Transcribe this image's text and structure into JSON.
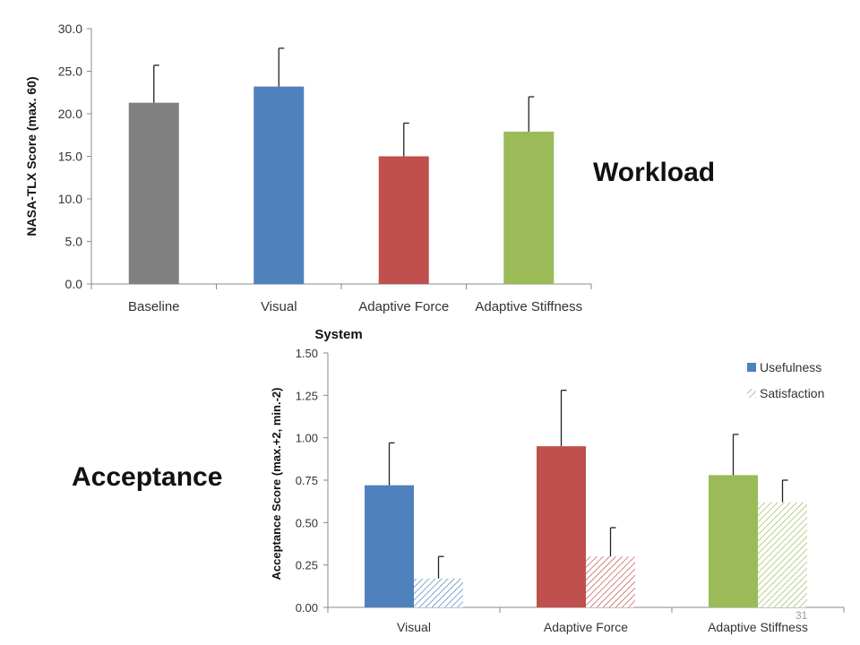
{
  "labels": {
    "workload": "Workload",
    "acceptance": "Acceptance",
    "page_number": "31"
  },
  "chart_data": [
    {
      "type": "bar",
      "ylabel": "NASA-TLX Score (max. 60)",
      "xlabel": "System",
      "ylim": [
        0,
        30
      ],
      "ytick_step": 5,
      "ytick_labels": [
        "0.0",
        "5.0",
        "10.0",
        "15.0",
        "20.0",
        "25.0",
        "30.0"
      ],
      "grid": false,
      "categories": [
        "Baseline",
        "Visual",
        "Adaptive Force",
        "Adaptive Stiffness"
      ],
      "values": [
        21.3,
        23.2,
        15.0,
        17.9
      ],
      "errors": [
        4.4,
        4.5,
        3.9,
        4.1
      ],
      "colors": [
        "#808080",
        "#4f81bd",
        "#c0504d",
        "#9bbb59"
      ]
    },
    {
      "type": "bar",
      "ylabel": "Acceptance Score (max.+2, min.-2)",
      "ylim": [
        0,
        1.5
      ],
      "ytick_step": 0.25,
      "ytick_labels": [
        "0.00",
        "0.25",
        "0.50",
        "0.75",
        "1.00",
        "1.25",
        "1.50"
      ],
      "grid": false,
      "legend": "top-right",
      "categories": [
        "Visual",
        "Adaptive Force",
        "Adaptive Stiffness"
      ],
      "series": [
        {
          "name": "Usefulness",
          "style": "solid",
          "values": [
            0.72,
            0.95,
            0.78
          ],
          "errors": [
            0.25,
            0.33,
            0.24
          ]
        },
        {
          "name": "Satisfaction",
          "style": "hatched",
          "values": [
            0.17,
            0.3,
            0.62
          ],
          "errors": [
            0.13,
            0.17,
            0.13
          ]
        }
      ],
      "category_colors": [
        "#4f81bd",
        "#c0504d",
        "#9bbb59"
      ]
    }
  ]
}
